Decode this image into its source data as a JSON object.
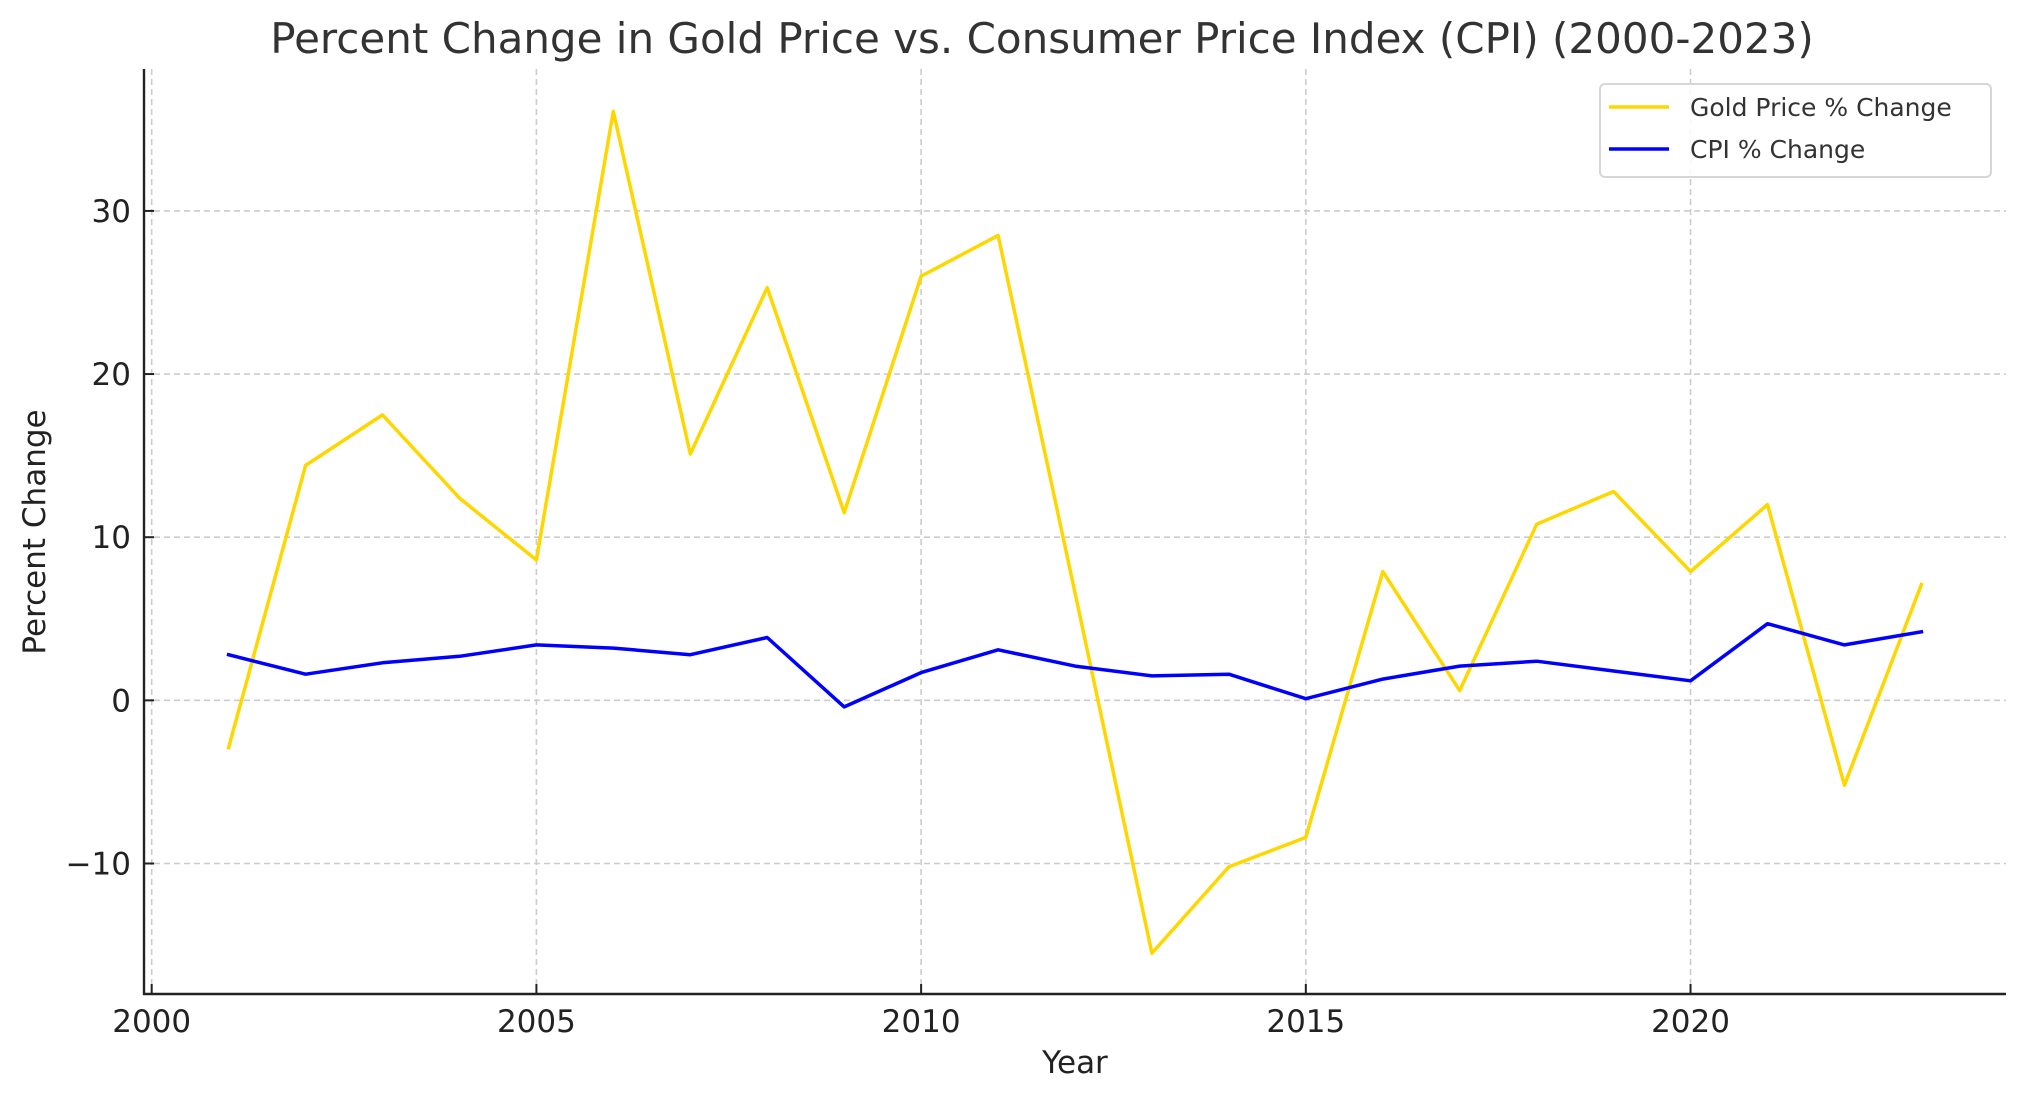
{
  "chart_data": {
    "type": "line",
    "title": "Percent Change in Gold Price vs. Consumer Price Index (CPI) (2000-2023)",
    "xlabel": "Year",
    "ylabel": "Percent Change",
    "xlim": [
      1999.9,
      2024.1
    ],
    "ylim": [
      -18.0,
      38.7
    ],
    "grid": true,
    "legend_position": "top-right",
    "x_ticks": [
      2000,
      2005,
      2010,
      2015,
      2020
    ],
    "x_tick_labels": [
      "2000",
      "2005",
      "2010",
      "2015",
      "2020"
    ],
    "y_ticks": [
      -10,
      0,
      10,
      20,
      30
    ],
    "y_tick_labels": [
      "−10",
      "0",
      "10",
      "20",
      "30"
    ],
    "x": [
      2001,
      2002,
      2003,
      2004,
      2005,
      2006,
      2007,
      2008,
      2009,
      2010,
      2011,
      2012,
      2013,
      2014,
      2015,
      2016,
      2017,
      2018,
      2019,
      2020,
      2021,
      2022,
      2023
    ],
    "series": [
      {
        "name": "Gold Price % Change",
        "color": "#FFD700",
        "values": [
          -2.9,
          14.4,
          17.5,
          12.4,
          8.6,
          36.1,
          15.1,
          25.3,
          11.5,
          26.0,
          28.5,
          6.6,
          -15.5,
          -10.2,
          -8.4,
          7.9,
          0.6,
          10.8,
          12.8,
          7.9,
          12.0,
          -5.2,
          7.1
        ]
      },
      {
        "name": "CPI % Change",
        "color": "#0000FF",
        "values": [
          2.8,
          1.6,
          2.3,
          2.7,
          3.4,
          3.2,
          2.8,
          3.85,
          -0.4,
          1.7,
          3.1,
          2.1,
          1.5,
          1.6,
          0.1,
          1.3,
          2.1,
          2.4,
          1.8,
          1.2,
          4.7,
          3.4,
          4.2
        ]
      }
    ]
  }
}
